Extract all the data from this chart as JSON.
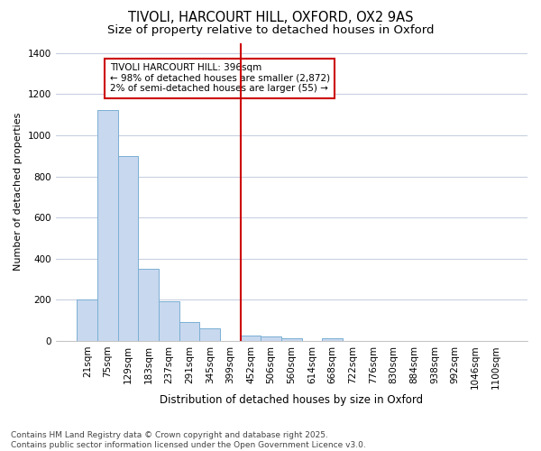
{
  "title_line1": "TIVOLI, HARCOURT HILL, OXFORD, OX2 9AS",
  "title_line2": "Size of property relative to detached houses in Oxford",
  "xlabel": "Distribution of detached houses by size in Oxford",
  "ylabel": "Number of detached properties",
  "categories": [
    "21sqm",
    "75sqm",
    "129sqm",
    "183sqm",
    "237sqm",
    "291sqm",
    "345sqm",
    "399sqm",
    "452sqm",
    "506sqm",
    "560sqm",
    "614sqm",
    "668sqm",
    "722sqm",
    "776sqm",
    "830sqm",
    "884sqm",
    "938sqm",
    "992sqm",
    "1046sqm",
    "1100sqm"
  ],
  "values": [
    200,
    1125,
    900,
    350,
    195,
    90,
    60,
    0,
    25,
    20,
    12,
    0,
    12,
    0,
    0,
    0,
    0,
    0,
    0,
    0,
    0
  ],
  "bar_color": "#c8d8ee",
  "bar_edge_color": "#7bafd4",
  "vline_x_index": 7,
  "vline_color": "#cc0000",
  "annotation_text": "TIVOLI HARCOURT HILL: 396sqm\n← 98% of detached houses are smaller (2,872)\n2% of semi-detached houses are larger (55) →",
  "annotation_box_facecolor": "#ffffff",
  "annotation_box_edgecolor": "#cc0000",
  "ylim": [
    0,
    1450
  ],
  "yticks": [
    0,
    200,
    400,
    600,
    800,
    1000,
    1200,
    1400
  ],
  "bg_color": "#ffffff",
  "plot_bg_color": "#ffffff",
  "grid_color": "#c8d0e0",
  "footer_text": "Contains HM Land Registry data © Crown copyright and database right 2025.\nContains public sector information licensed under the Open Government Licence v3.0.",
  "title_fontsize": 10.5,
  "subtitle_fontsize": 9.5,
  "xlabel_fontsize": 8.5,
  "ylabel_fontsize": 8,
  "tick_fontsize": 7.5,
  "annot_fontsize": 7.5,
  "footer_fontsize": 6.5
}
